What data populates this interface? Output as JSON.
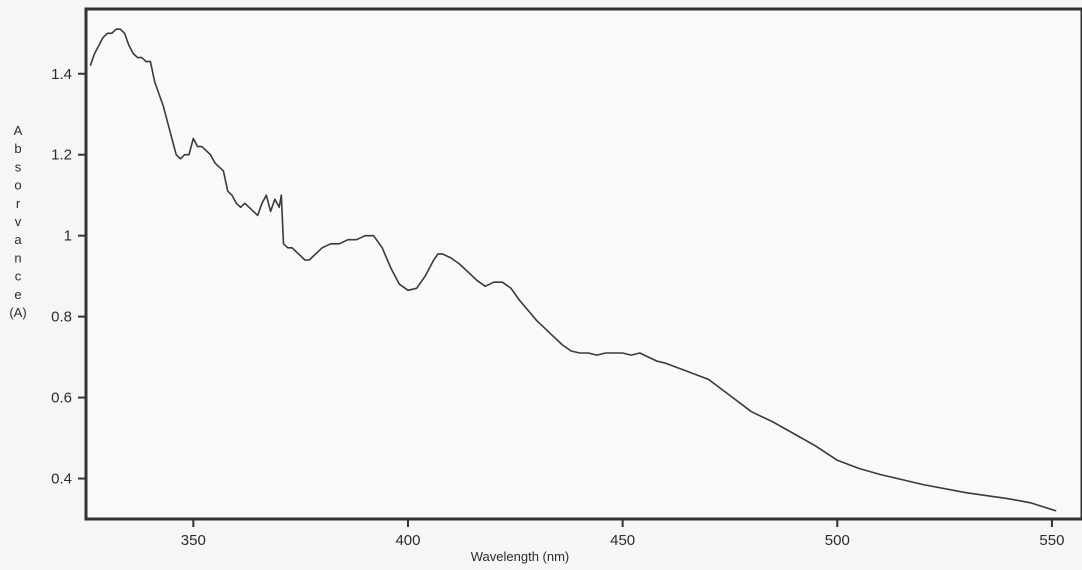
{
  "chart_data": {
    "type": "line",
    "title": "",
    "xlabel": "Wavelength (nm)",
    "ylabel": "Absorvance (A)",
    "ylabel_letters": [
      "A",
      "b",
      "s",
      "o",
      "r",
      "v",
      "a",
      "n",
      "c",
      "e",
      "(A)"
    ],
    "xlim": [
      325,
      557
    ],
    "ylim": [
      0.3,
      1.56
    ],
    "x_ticks": [
      350,
      400,
      450,
      500,
      550
    ],
    "y_ticks": [
      0.4,
      0.6,
      0.8,
      1.0,
      1.2,
      1.4
    ],
    "x_tick_labels": [
      "350",
      "400",
      "450",
      "500",
      "550"
    ],
    "y_tick_labels": [
      "0.4",
      "0.6",
      "0.8",
      "1",
      "1.2",
      "1.4"
    ],
    "grid": false,
    "line_color": "#3a3a3a",
    "series": [
      {
        "x": [
          326,
          327,
          328,
          329,
          330,
          331,
          332,
          333,
          334,
          335,
          336,
          337,
          338,
          339,
          340,
          341,
          342,
          343,
          344,
          345,
          346,
          347,
          348,
          349,
          350,
          351,
          352,
          353,
          354,
          355,
          356,
          357,
          358,
          359,
          360,
          361,
          362,
          363,
          364,
          365,
          366,
          367,
          368,
          369,
          370,
          370.5,
          371,
          372,
          373,
          374,
          375,
          376,
          377,
          378,
          379,
          380,
          382,
          384,
          386,
          388,
          390,
          392,
          394,
          396,
          398,
          400,
          402,
          404,
          406,
          407,
          408,
          410,
          412,
          414,
          416,
          418,
          420,
          422,
          424,
          426,
          428,
          430,
          432,
          434,
          436,
          438,
          440,
          442,
          444,
          446,
          448,
          450,
          452,
          454,
          456,
          458,
          460,
          465,
          470,
          475,
          480,
          485,
          490,
          495,
          500,
          505,
          510,
          520,
          530,
          540,
          545,
          548,
          551
        ],
        "y": [
          1.42,
          1.45,
          1.47,
          1.49,
          1.5,
          1.5,
          1.51,
          1.51,
          1.5,
          1.47,
          1.45,
          1.44,
          1.44,
          1.43,
          1.43,
          1.38,
          1.35,
          1.32,
          1.28,
          1.24,
          1.2,
          1.19,
          1.2,
          1.2,
          1.24,
          1.22,
          1.22,
          1.21,
          1.2,
          1.18,
          1.17,
          1.16,
          1.11,
          1.1,
          1.08,
          1.07,
          1.08,
          1.07,
          1.06,
          1.05,
          1.08,
          1.1,
          1.06,
          1.09,
          1.07,
          1.1,
          0.98,
          0.97,
          0.97,
          0.96,
          0.95,
          0.94,
          0.94,
          0.95,
          0.96,
          0.97,
          0.98,
          0.98,
          0.99,
          0.99,
          1.0,
          1.0,
          0.97,
          0.92,
          0.88,
          0.865,
          0.87,
          0.9,
          0.94,
          0.955,
          0.955,
          0.945,
          0.93,
          0.91,
          0.89,
          0.875,
          0.885,
          0.885,
          0.87,
          0.84,
          0.815,
          0.79,
          0.77,
          0.75,
          0.73,
          0.715,
          0.71,
          0.71,
          0.705,
          0.71,
          0.71,
          0.71,
          0.705,
          0.71,
          0.7,
          0.69,
          0.685,
          0.665,
          0.645,
          0.605,
          0.565,
          0.54,
          0.51,
          0.48,
          0.445,
          0.425,
          0.41,
          0.385,
          0.365,
          0.35,
          0.34,
          0.33,
          0.32
        ]
      }
    ]
  }
}
